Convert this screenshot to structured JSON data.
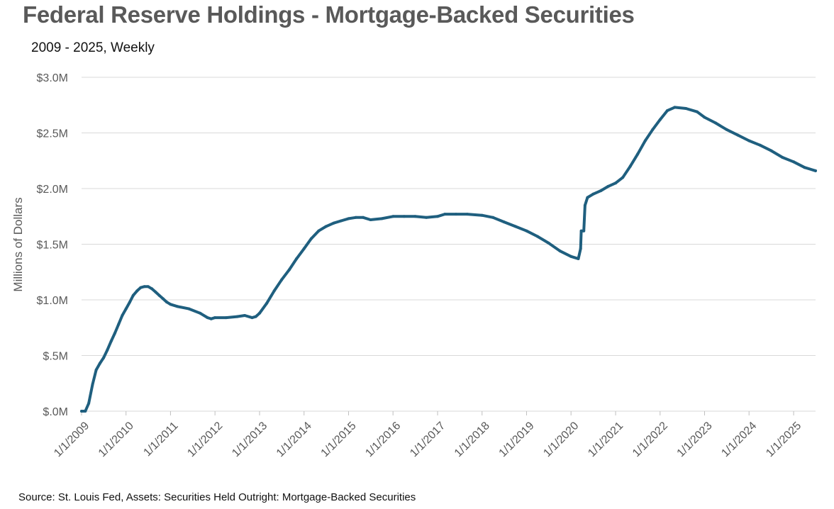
{
  "title": "Federal Reserve Holdings - Mortgage-Backed Securities",
  "subtitle": "2009 - 2025, Weekly",
  "source": "Source: St. Louis Fed, Assets: Securities Held Outright: Mortgage-Backed Securities",
  "colors": {
    "line": "#1f5f7f",
    "grid": "#d9d9d9",
    "axis_text": "#595959"
  },
  "chart_data": {
    "type": "line",
    "title": "Federal Reserve Holdings - Mortgage-Backed Securities",
    "subtitle": "2009 - 2025, Weekly",
    "ylabel": "Millions of Dollars",
    "xlabel": "",
    "ylim": [
      0,
      3.0
    ],
    "y_ticks": [
      0,
      0.5,
      1.0,
      1.5,
      2.0,
      2.5,
      3.0
    ],
    "y_tick_labels": [
      "$.0M",
      "$.5M",
      "$1.0M",
      "$1.5M",
      "$2.0M",
      "$2.5M",
      "$3.0M"
    ],
    "xlim": [
      "2009-01-01",
      "2025-06-30"
    ],
    "x_tick_labels": [
      "1/1/2009",
      "1/1/2010",
      "1/1/2011",
      "1/1/2012",
      "1/1/2013",
      "1/1/2014",
      "1/1/2015",
      "1/1/2016",
      "1/1/2017",
      "1/1/2018",
      "1/1/2019",
      "1/1/2020",
      "1/1/2021",
      "1/1/2022",
      "1/1/2023",
      "1/1/2024",
      "1/1/2025"
    ],
    "x_ticks": [
      "2009-01-01",
      "2010-01-01",
      "2011-01-01",
      "2012-01-01",
      "2013-01-01",
      "2014-01-01",
      "2015-01-01",
      "2016-01-01",
      "2017-01-01",
      "2018-01-01",
      "2019-01-01",
      "2020-01-01",
      "2021-01-01",
      "2022-01-01",
      "2023-01-01",
      "2024-01-01",
      "2025-01-01"
    ],
    "grid": true,
    "legend": "none",
    "series": [
      {
        "points": [
          [
            "2009-01-01",
            0.0
          ],
          [
            "2009-02-01",
            0.0
          ],
          [
            "2009-03-01",
            0.07
          ],
          [
            "2009-04-01",
            0.24
          ],
          [
            "2009-05-01",
            0.37
          ],
          [
            "2009-06-01",
            0.43
          ],
          [
            "2009-07-01",
            0.48
          ],
          [
            "2009-08-01",
            0.55
          ],
          [
            "2009-09-01",
            0.63
          ],
          [
            "2009-10-01",
            0.7
          ],
          [
            "2009-11-01",
            0.78
          ],
          [
            "2009-12-01",
            0.86
          ],
          [
            "2010-01-01",
            0.92
          ],
          [
            "2010-02-01",
            0.98
          ],
          [
            "2010-03-01",
            1.04
          ],
          [
            "2010-04-01",
            1.08
          ],
          [
            "2010-05-01",
            1.11
          ],
          [
            "2010-06-01",
            1.12
          ],
          [
            "2010-07-01",
            1.12
          ],
          [
            "2010-08-01",
            1.1
          ],
          [
            "2010-09-01",
            1.07
          ],
          [
            "2010-10-01",
            1.04
          ],
          [
            "2010-11-01",
            1.01
          ],
          [
            "2010-12-01",
            0.98
          ],
          [
            "2011-01-01",
            0.96
          ],
          [
            "2011-03-01",
            0.94
          ],
          [
            "2011-06-01",
            0.92
          ],
          [
            "2011-09-01",
            0.88
          ],
          [
            "2011-11-01",
            0.84
          ],
          [
            "2011-12-01",
            0.83
          ],
          [
            "2012-01-01",
            0.84
          ],
          [
            "2012-04-01",
            0.84
          ],
          [
            "2012-07-01",
            0.85
          ],
          [
            "2012-09-01",
            0.86
          ],
          [
            "2012-11-01",
            0.84
          ],
          [
            "2012-12-01",
            0.85
          ],
          [
            "2013-01-01",
            0.88
          ],
          [
            "2013-03-01",
            0.97
          ],
          [
            "2013-05-01",
            1.08
          ],
          [
            "2013-07-01",
            1.18
          ],
          [
            "2013-09-01",
            1.27
          ],
          [
            "2013-11-01",
            1.37
          ],
          [
            "2014-01-01",
            1.46
          ],
          [
            "2014-03-01",
            1.55
          ],
          [
            "2014-05-01",
            1.62
          ],
          [
            "2014-07-01",
            1.66
          ],
          [
            "2014-09-01",
            1.69
          ],
          [
            "2014-11-01",
            1.71
          ],
          [
            "2015-01-01",
            1.73
          ],
          [
            "2015-03-01",
            1.74
          ],
          [
            "2015-05-01",
            1.74
          ],
          [
            "2015-07-01",
            1.72
          ],
          [
            "2015-10-01",
            1.73
          ],
          [
            "2016-01-01",
            1.75
          ],
          [
            "2016-04-01",
            1.75
          ],
          [
            "2016-07-01",
            1.75
          ],
          [
            "2016-10-01",
            1.74
          ],
          [
            "2017-01-01",
            1.75
          ],
          [
            "2017-03-01",
            1.77
          ],
          [
            "2017-06-01",
            1.77
          ],
          [
            "2017-09-01",
            1.77
          ],
          [
            "2018-01-01",
            1.76
          ],
          [
            "2018-04-01",
            1.74
          ],
          [
            "2018-07-01",
            1.7
          ],
          [
            "2018-10-01",
            1.66
          ],
          [
            "2019-01-01",
            1.62
          ],
          [
            "2019-04-01",
            1.57
          ],
          [
            "2019-07-01",
            1.51
          ],
          [
            "2019-10-01",
            1.44
          ],
          [
            "2020-01-01",
            1.39
          ],
          [
            "2020-03-01",
            1.37
          ],
          [
            "2020-03-20",
            1.46
          ],
          [
            "2020-03-25",
            1.62
          ],
          [
            "2020-04-15",
            1.62
          ],
          [
            "2020-04-25",
            1.85
          ],
          [
            "2020-05-15",
            1.92
          ],
          [
            "2020-07-01",
            1.95
          ],
          [
            "2020-09-01",
            1.98
          ],
          [
            "2020-11-01",
            2.02
          ],
          [
            "2021-01-01",
            2.05
          ],
          [
            "2021-03-01",
            2.1
          ],
          [
            "2021-05-01",
            2.2
          ],
          [
            "2021-07-01",
            2.31
          ],
          [
            "2021-09-01",
            2.43
          ],
          [
            "2021-11-01",
            2.53
          ],
          [
            "2022-01-01",
            2.62
          ],
          [
            "2022-03-01",
            2.7
          ],
          [
            "2022-05-01",
            2.73
          ],
          [
            "2022-08-01",
            2.72
          ],
          [
            "2022-11-01",
            2.69
          ],
          [
            "2023-01-01",
            2.64
          ],
          [
            "2023-04-01",
            2.59
          ],
          [
            "2023-07-01",
            2.53
          ],
          [
            "2023-10-01",
            2.48
          ],
          [
            "2024-01-01",
            2.43
          ],
          [
            "2024-04-01",
            2.39
          ],
          [
            "2024-07-01",
            2.34
          ],
          [
            "2024-10-01",
            2.28
          ],
          [
            "2025-01-01",
            2.24
          ],
          [
            "2025-04-01",
            2.19
          ],
          [
            "2025-06-30",
            2.16
          ]
        ]
      }
    ]
  }
}
